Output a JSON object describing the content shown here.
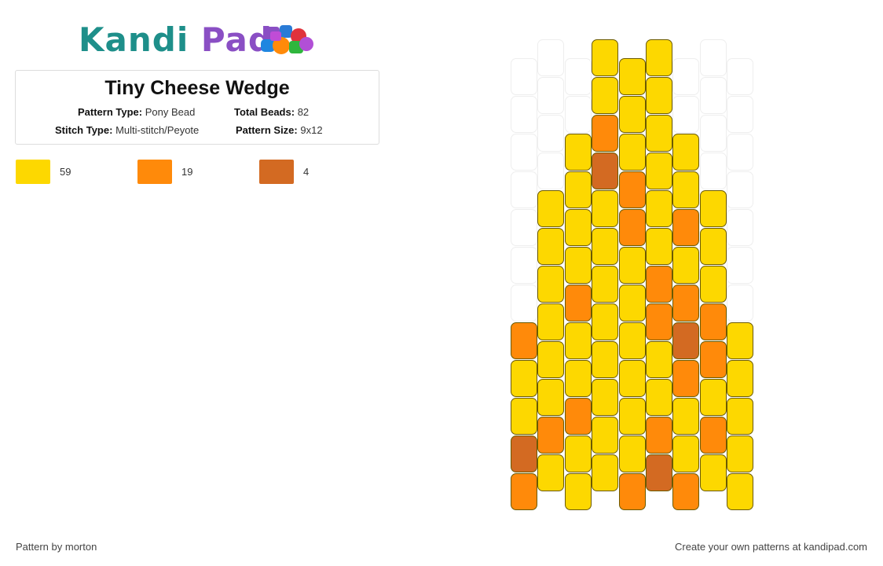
{
  "brand": {
    "logo_text_1": "Kandi",
    "logo_text_2": "Pad"
  },
  "pattern": {
    "title": "Tiny Cheese Wedge",
    "pattern_type_label": "Pattern Type:",
    "pattern_type": "Pony Bead",
    "total_beads_label": "Total Beads:",
    "total_beads": "82",
    "stitch_type_label": "Stitch Type:",
    "stitch_type": "Multi-stitch/Peyote",
    "pattern_size_label": "Pattern Size:",
    "pattern_size": "9x12"
  },
  "legend": [
    {
      "color": "#fdd800",
      "count": "59"
    },
    {
      "color": "#ff8a0a",
      "count": "19"
    },
    {
      "color": "#d36a22",
      "count": "4"
    }
  ],
  "colors": {
    "Y": "#fdd800",
    "O": "#ff8a0a",
    "B": "#d36a22"
  },
  "bead_columns": [
    [
      "E",
      "E",
      "E",
      "E",
      "E",
      "E",
      "E",
      "O",
      "Y",
      "Y",
      "B",
      "O"
    ],
    [
      "E",
      "E",
      "E",
      "E",
      "Y",
      "Y",
      "Y",
      "Y",
      "Y",
      "Y",
      "O",
      "Y"
    ],
    [
      "E",
      "E",
      "Y",
      "Y",
      "Y",
      "Y",
      "O",
      "Y",
      "Y",
      "O",
      "Y",
      "Y"
    ],
    [
      "Y",
      "Y",
      "O",
      "B",
      "Y",
      "Y",
      "Y",
      "Y",
      "Y",
      "Y",
      "Y",
      "Y"
    ],
    [
      "Y",
      "Y",
      "Y",
      "O",
      "O",
      "Y",
      "Y",
      "Y",
      "Y",
      "Y",
      "Y",
      "O"
    ],
    [
      "Y",
      "Y",
      "Y",
      "Y",
      "Y",
      "Y",
      "O",
      "O",
      "Y",
      "Y",
      "O",
      "B"
    ],
    [
      "E",
      "E",
      "Y",
      "Y",
      "O",
      "Y",
      "O",
      "B",
      "O",
      "Y",
      "Y",
      "O"
    ],
    [
      "E",
      "E",
      "E",
      "E",
      "Y",
      "Y",
      "Y",
      "O",
      "O",
      "Y",
      "O",
      "Y"
    ],
    [
      "E",
      "E",
      "E",
      "E",
      "E",
      "E",
      "E",
      "Y",
      "Y",
      "Y",
      "Y",
      "Y"
    ]
  ],
  "footer": {
    "credit": "Pattern by morton",
    "cta": "Create your own patterns at kandipad.com"
  }
}
